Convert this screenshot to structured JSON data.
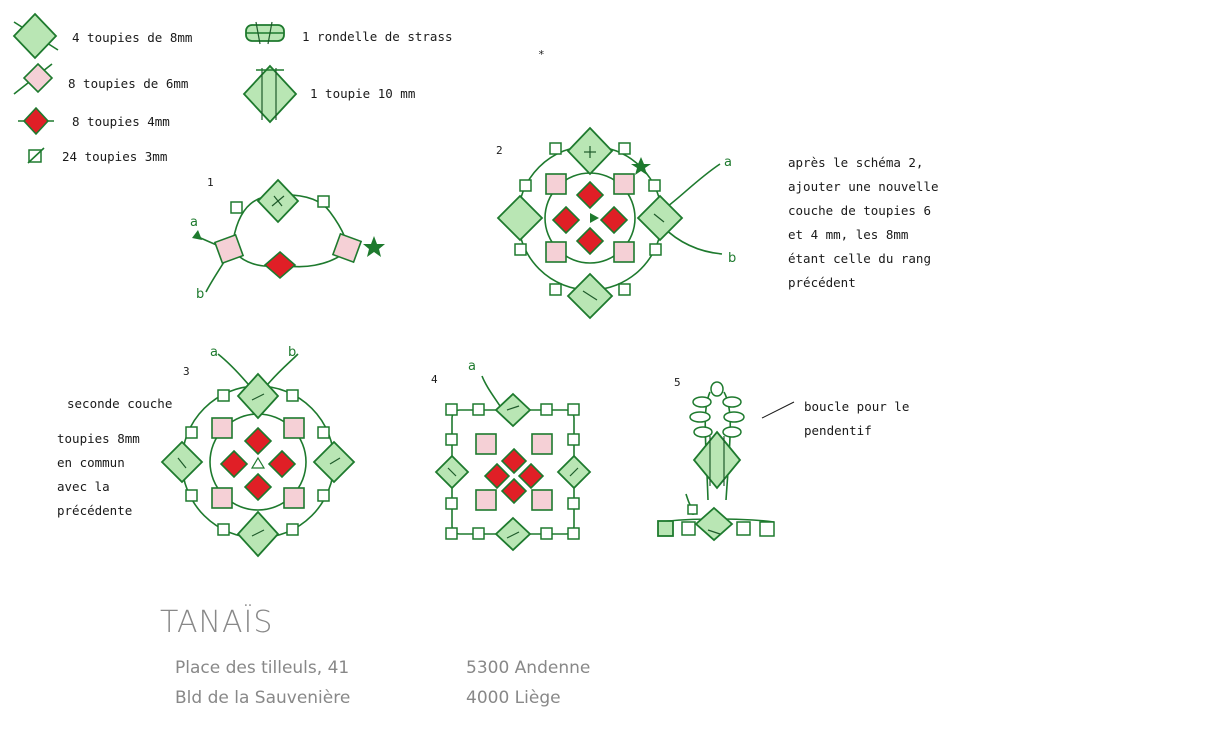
{
  "legend": {
    "items": [
      {
        "label": "4 toupies de 8mm",
        "icon": "toupie-8mm-icon"
      },
      {
        "label": "8 toupies de 6mm",
        "icon": "toupie-6mm-icon"
      },
      {
        "label": "8 toupies 4mm",
        "icon": "toupie-4mm-icon"
      },
      {
        "label": "24 toupies 3mm",
        "icon": "toupie-3mm-icon"
      },
      {
        "label": "1 rondelle de strass",
        "icon": "rondelle-strass-icon"
      },
      {
        "label": "1 toupie 10 mm",
        "icon": "toupie-10mm-icon"
      }
    ]
  },
  "steps": {
    "s1": {
      "number": "1",
      "a": "a",
      "b": "b"
    },
    "s2": {
      "number": "2",
      "a": "a",
      "b": "b",
      "note": [
        "après le schéma 2,",
        "ajouter une nouvelle",
        "couche de toupies 6",
        "et 4 mm, les 8mm",
        "étant celle du rang",
        "précédent"
      ]
    },
    "s3": {
      "number": "3",
      "a": "a",
      "b": "b",
      "note_title": "seconde couche",
      "note": [
        "toupies 8mm",
        "en commun",
        "avec la",
        "précédente"
      ]
    },
    "s4": {
      "number": "4",
      "a": "a"
    },
    "s5": {
      "number": "5",
      "note": [
        "boucle pour le",
        "pendentif"
      ]
    }
  },
  "stray_mark": "*",
  "footer": {
    "brand": "TANAÏS",
    "addresses": [
      {
        "street": "Place des tilleuls, 41",
        "city": "5300 Andenne"
      },
      {
        "street": "Bld de la Sauvenière",
        "city": "4000 Liège"
      }
    ]
  },
  "colors": {
    "thread": "#1e7a2e",
    "toupie_8mm": "#b9e6b4",
    "toupie_6mm": "#f5d0d6",
    "toupie_4mm": "#e01f26",
    "toupie_3mm": "#ffffff",
    "footer_text": "#888888"
  }
}
